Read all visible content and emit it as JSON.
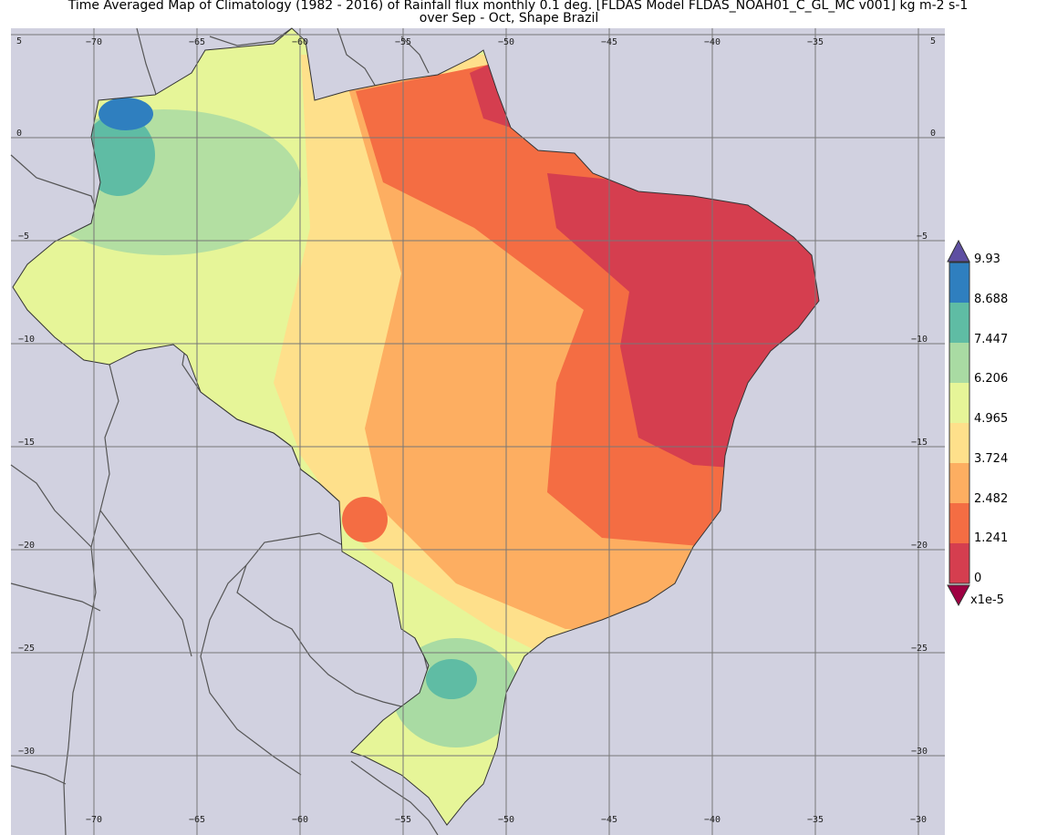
{
  "title": {
    "line1": "Time Averaged Map of Climatology (1982 - 2016) of Rainfall flux monthly 0.1 deg. [FLDAS Model FLDAS_NOAH01_C_GL_MC v001] kg m-2 s-1",
    "line2": "over Sep - Oct, Shape Brazil"
  },
  "map": {
    "region": "Brazil",
    "lon_ticks": [
      "−70",
      "−65",
      "−60",
      "−55",
      "−50",
      "−45",
      "−40",
      "−35",
      "−30"
    ],
    "lat_ticks": [
      "5",
      "0",
      "−5",
      "−10",
      "−15",
      "−20",
      "−25",
      "−30"
    ],
    "background_color": "#d1d1e0",
    "boundary_color": "#555555"
  },
  "colorbar": {
    "labels": [
      "9.93",
      "8.688",
      "7.447",
      "6.206",
      "4.965",
      "3.724",
      "2.482",
      "1.241",
      "0"
    ],
    "scale_label": "x1e-5",
    "colors": [
      "#2f7fbf",
      "#5fbca4",
      "#a9dba3",
      "#e6f598",
      "#fee08b",
      "#fdae61",
      "#f46d43",
      "#d53e4f"
    ],
    "over_color": "#5e4fa2",
    "under_color": "#9e0142"
  }
}
